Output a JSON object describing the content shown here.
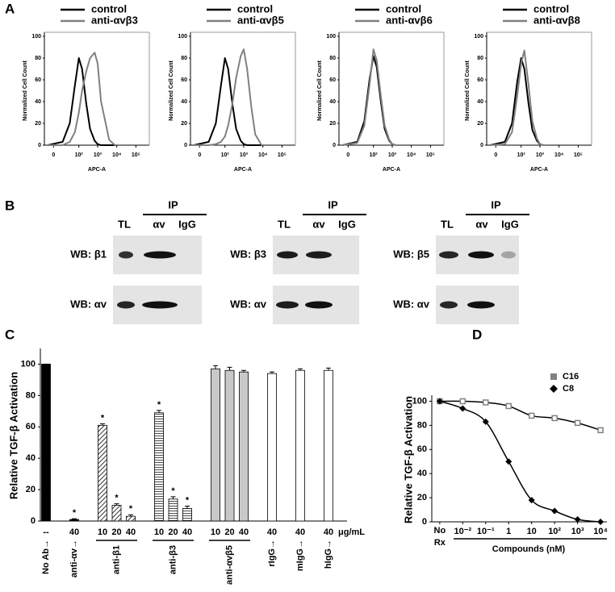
{
  "panel_labels": [
    "A",
    "B",
    "C",
    "D"
  ],
  "chart_data": [
    {
      "type": "line",
      "xscale": "biexponential",
      "xlabel": "APC-A",
      "ylabel": "Normalized Cell Count",
      "x": [
        -5,
        10,
        30,
        60,
        100,
        150,
        250,
        400,
        700,
        1000,
        1500,
        2500,
        4000,
        8000
      ],
      "xlim": [
        -10,
        500000
      ],
      "xticks": [
        0,
        {
          "value": 100,
          "label": "10²"
        },
        {
          "value": 1000,
          "label": "10³"
        },
        {
          "value": 10000,
          "label": "10⁴"
        },
        {
          "value": 100000,
          "label": "10⁵"
        }
      ],
      "ylim": [
        0,
        100
      ],
      "yticks": [
        0,
        20,
        40,
        60,
        80,
        100
      ],
      "series": [
        {
          "name": "control",
          "color": "#000000",
          "values": [
            0,
            3,
            20,
            55,
            80,
            70,
            38,
            15,
            4,
            1,
            0,
            0,
            0,
            0
          ]
        },
        {
          "name": "anti-αvβ3",
          "color": "#808080",
          "values": [
            0,
            0,
            3,
            12,
            30,
            50,
            68,
            80,
            85,
            75,
            40,
            22,
            5,
            0
          ]
        }
      ]
    },
    {
      "type": "line",
      "xscale": "biexponential",
      "xlabel": "APC-A",
      "ylabel": "Normalized Cell Count",
      "x": [
        -5,
        10,
        30,
        60,
        100,
        150,
        250,
        400,
        700,
        1000,
        1500,
        2500,
        4000,
        8000
      ],
      "xlim": [
        -10,
        500000
      ],
      "xticks": [
        0,
        {
          "value": 100,
          "label": "10²"
        },
        {
          "value": 1000,
          "label": "10³"
        },
        {
          "value": 10000,
          "label": "10⁴"
        },
        {
          "value": 100000,
          "label": "10⁵"
        }
      ],
      "ylim": [
        0,
        100
      ],
      "yticks": [
        0,
        20,
        40,
        60,
        80,
        100
      ],
      "series": [
        {
          "name": "control",
          "color": "#000000",
          "values": [
            0,
            3,
            20,
            55,
            80,
            70,
            38,
            15,
            4,
            1,
            0,
            0,
            0,
            0
          ]
        },
        {
          "name": "anti-αvβ5",
          "color": "#808080",
          "values": [
            0,
            0,
            1,
            3,
            8,
            18,
            38,
            62,
            82,
            88,
            70,
            35,
            10,
            1
          ]
        }
      ]
    },
    {
      "type": "line",
      "xscale": "biexponential",
      "xlabel": "APC-A",
      "ylabel": "Normalized Cell Count",
      "x": [
        -5,
        10,
        30,
        60,
        100,
        150,
        250,
        400,
        700,
        1000,
        1500,
        2500,
        4000,
        8000
      ],
      "xlim": [
        -10,
        500000
      ],
      "xticks": [
        0,
        {
          "value": 100,
          "label": "10²"
        },
        {
          "value": 1000,
          "label": "10³"
        },
        {
          "value": 10000,
          "label": "10⁴"
        },
        {
          "value": 100000,
          "label": "10⁵"
        }
      ],
      "ylim": [
        0,
        100
      ],
      "yticks": [
        0,
        20,
        40,
        60,
        80,
        100
      ],
      "series": [
        {
          "name": "control",
          "color": "#000000",
          "values": [
            0,
            3,
            22,
            60,
            82,
            72,
            40,
            15,
            4,
            1,
            0,
            0,
            0,
            0
          ]
        },
        {
          "name": "anti-αvβ6",
          "color": "#808080",
          "values": [
            0,
            2,
            18,
            55,
            88,
            78,
            45,
            18,
            5,
            1,
            0,
            0,
            0,
            0
          ]
        }
      ]
    },
    {
      "type": "line",
      "xscale": "biexponential",
      "xlabel": "APC-A",
      "ylabel": "Normalized Cell Count",
      "x": [
        -5,
        10,
        30,
        60,
        100,
        150,
        250,
        400,
        700,
        1000,
        1500,
        2500,
        4000,
        8000
      ],
      "xlim": [
        -10,
        500000
      ],
      "xticks": [
        0,
        {
          "value": 100,
          "label": "10²"
        },
        {
          "value": 1000,
          "label": "10³"
        },
        {
          "value": 10000,
          "label": "10⁴"
        },
        {
          "value": 100000,
          "label": "10⁵"
        }
      ],
      "ylim": [
        0,
        100
      ],
      "yticks": [
        0,
        20,
        40,
        60,
        80,
        100
      ],
      "series": [
        {
          "name": "control",
          "color": "#000000",
          "values": [
            0,
            3,
            20,
            58,
            80,
            70,
            38,
            14,
            4,
            1,
            0,
            0,
            0,
            0
          ]
        },
        {
          "name": "anti-αvβ8",
          "color": "#808080",
          "values": [
            0,
            1,
            12,
            45,
            75,
            87,
            55,
            22,
            6,
            1,
            0,
            0,
            0,
            0
          ]
        }
      ]
    },
    {
      "type": "bar",
      "ylabel": "Relative TGF-β Activation",
      "unit_label": "μg/mL",
      "ylim": [
        0,
        110
      ],
      "yticks": [
        0,
        20,
        40,
        60,
        80,
        100
      ],
      "series": [
        {
          "name": "No Ab→",
          "categories": [
            "--"
          ],
          "values": [
            100
          ],
          "errors": [
            0
          ],
          "significance": [
            null
          ],
          "color": "#000000",
          "pattern": "solid"
        },
        {
          "name": "anti-αv→",
          "categories": [
            40
          ],
          "values": [
            1
          ],
          "errors": [
            0.5
          ],
          "significance": [
            "*"
          ],
          "color": "#000000",
          "pattern": "solid"
        },
        {
          "name": "anti-β1",
          "categories": [
            10,
            20,
            40
          ],
          "values": [
            61,
            10,
            3
          ],
          "errors": [
            1,
            1,
            1
          ],
          "significance": [
            "*",
            "*",
            "*"
          ],
          "color": "#ffffff",
          "pattern": "diagonal"
        },
        {
          "name": "anti-β3",
          "categories": [
            10,
            20,
            40
          ],
          "values": [
            69,
            14,
            8
          ],
          "errors": [
            1.5,
            1.5,
            1.5
          ],
          "significance": [
            "*",
            "*",
            "*"
          ],
          "color": "#ffffff",
          "pattern": "horizontal"
        },
        {
          "name": "anti-αvβ5",
          "categories": [
            10,
            20,
            40
          ],
          "values": [
            97,
            96,
            95
          ],
          "errors": [
            2,
            2,
            1
          ],
          "significance": [
            null,
            null,
            null
          ],
          "color": "#c8c8c8",
          "pattern": "solid"
        },
        {
          "name": "rIgG→",
          "categories": [
            40
          ],
          "values": [
            94
          ],
          "errors": [
            1
          ],
          "significance": [
            null
          ],
          "color": "#ffffff",
          "pattern": "solid"
        },
        {
          "name": "mIgG→",
          "categories": [
            40
          ],
          "values": [
            96
          ],
          "errors": [
            1
          ],
          "significance": [
            null
          ],
          "color": "#ffffff",
          "pattern": "solid"
        },
        {
          "name": "hIgG→",
          "categories": [
            40
          ],
          "values": [
            96
          ],
          "errors": [
            1.5
          ],
          "significance": [
            null
          ],
          "color": "#ffffff",
          "pattern": "solid"
        }
      ]
    },
    {
      "type": "line",
      "xscale": "log",
      "xlabel": "Compounds (nM)",
      "ylabel": "Relative TGF-β Activation",
      "x": [
        0.001,
        0.01,
        0.1,
        1,
        10,
        100,
        1000,
        10000
      ],
      "xlim": [
        0.00045,
        19000
      ],
      "xticks": [
        {
          "value": 0.001,
          "label": "No Rx"
        },
        {
          "value": 0.01,
          "label": "10⁻²"
        },
        {
          "value": 0.1,
          "label": "10⁻¹"
        },
        1,
        10,
        {
          "value": 100,
          "label": "10²"
        },
        {
          "value": 1000,
          "label": "10³"
        },
        {
          "value": 10000,
          "label": "10⁴"
        }
      ],
      "ylim": [
        0,
        105
      ],
      "yticks": [
        0,
        20,
        40,
        60,
        80,
        100
      ],
      "legend": "upper right",
      "series": [
        {
          "name": "C16",
          "color": "#808080",
          "marker": "square",
          "values": [
            100,
            100,
            99,
            96,
            88,
            86,
            82,
            76
          ]
        },
        {
          "name": "C8",
          "color": "#000000",
          "marker": "diamond",
          "values": [
            100,
            94,
            83,
            50,
            18,
            9,
            2,
            0
          ]
        }
      ]
    }
  ],
  "blots": [
    {
      "ip": "IP",
      "lanes": [
        "TL",
        "αv",
        "IgG"
      ],
      "rows": [
        "WB: β1",
        "WB: αv"
      ]
    },
    {
      "ip": "IP",
      "lanes": [
        "TL",
        "αv",
        "IgG"
      ],
      "rows": [
        "WB: β3",
        "WB: αv"
      ]
    },
    {
      "ip": "IP",
      "lanes": [
        "TL",
        "αv",
        "IgG"
      ],
      "rows": [
        "WB: β5",
        "WB: αv"
      ]
    }
  ]
}
